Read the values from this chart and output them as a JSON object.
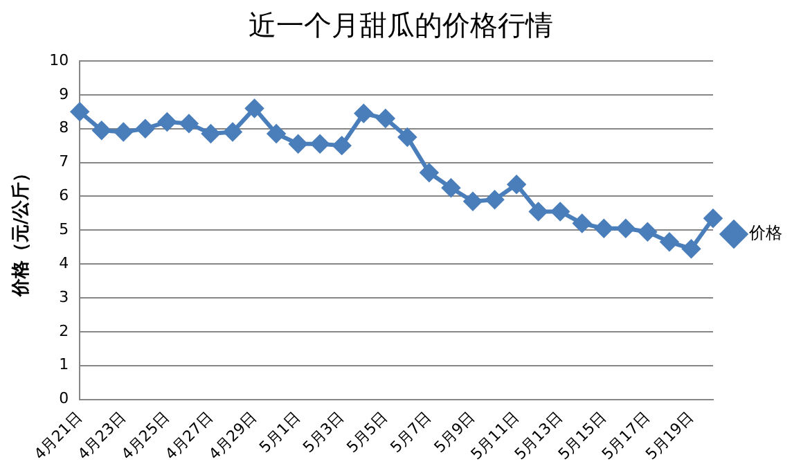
{
  "chart_data": {
    "type": "line",
    "title": "近一个月甜瓜的价格行情",
    "ylabel": "价格（元/公斤）",
    "categories": [
      "4月21日",
      null,
      "4月23日",
      null,
      "4月25日",
      null,
      "4月27日",
      null,
      "4月29日",
      null,
      "5月1日",
      null,
      "5月3日",
      null,
      "5月5日",
      null,
      "5月7日",
      null,
      "5月9日",
      null,
      "5月11日",
      null,
      "5月13日",
      null,
      "5月15日",
      null,
      "5月17日",
      null,
      "5月19日",
      null
    ],
    "series": [
      {
        "name": "价格",
        "color": "#4a7ebb",
        "values": [
          8.5,
          7.95,
          7.9,
          8.0,
          8.2,
          8.15,
          7.85,
          7.9,
          8.6,
          7.85,
          7.55,
          7.55,
          7.5,
          8.45,
          8.3,
          7.75,
          6.7,
          6.25,
          5.85,
          5.9,
          6.35,
          5.55,
          5.55,
          5.2,
          5.05,
          5.05,
          4.95,
          4.65,
          4.45,
          5.35
        ]
      }
    ],
    "ylim": [
      0,
      10
    ],
    "yticks": [
      0,
      1,
      2,
      3,
      4,
      5,
      6,
      7,
      8,
      9,
      10
    ],
    "grid": "y",
    "legend": "right",
    "marker": "diamond",
    "line_style": "solid"
  }
}
